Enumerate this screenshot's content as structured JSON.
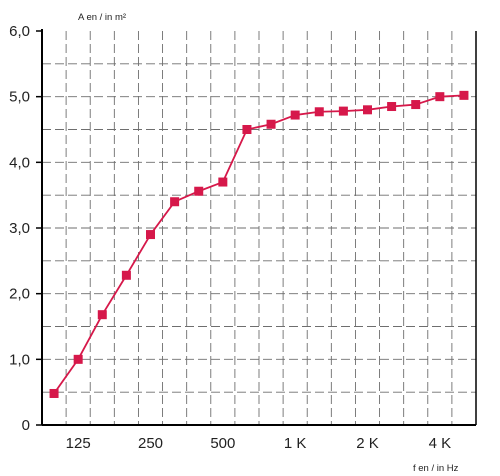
{
  "chart_data": {
    "type": "line",
    "ylabel": "A en / in m²",
    "xlabel": "f en / in Hz",
    "ylim": [
      0,
      6
    ],
    "y_ticks": [
      "0",
      "1,0",
      "2,0",
      "3,0",
      "4,0",
      "5,0",
      "6,0"
    ],
    "x_tick_labels": [
      "125",
      "250",
      "500",
      "1 K",
      "2 K",
      "4 K"
    ],
    "x_scale": "log (1/3 octave bands)",
    "grid": true,
    "series": [
      {
        "color": "#d6184a",
        "x": [
          100,
          125,
          160,
          200,
          250,
          315,
          400,
          500,
          630,
          800,
          1000,
          1250,
          1600,
          2000,
          2500,
          3150,
          4000,
          5000
        ],
        "values": [
          0.48,
          1.0,
          1.68,
          2.28,
          2.9,
          3.4,
          3.56,
          3.7,
          4.5,
          4.58,
          4.72,
          4.77,
          4.78,
          4.8,
          4.85,
          4.88,
          5.0,
          5.02
        ]
      }
    ]
  }
}
